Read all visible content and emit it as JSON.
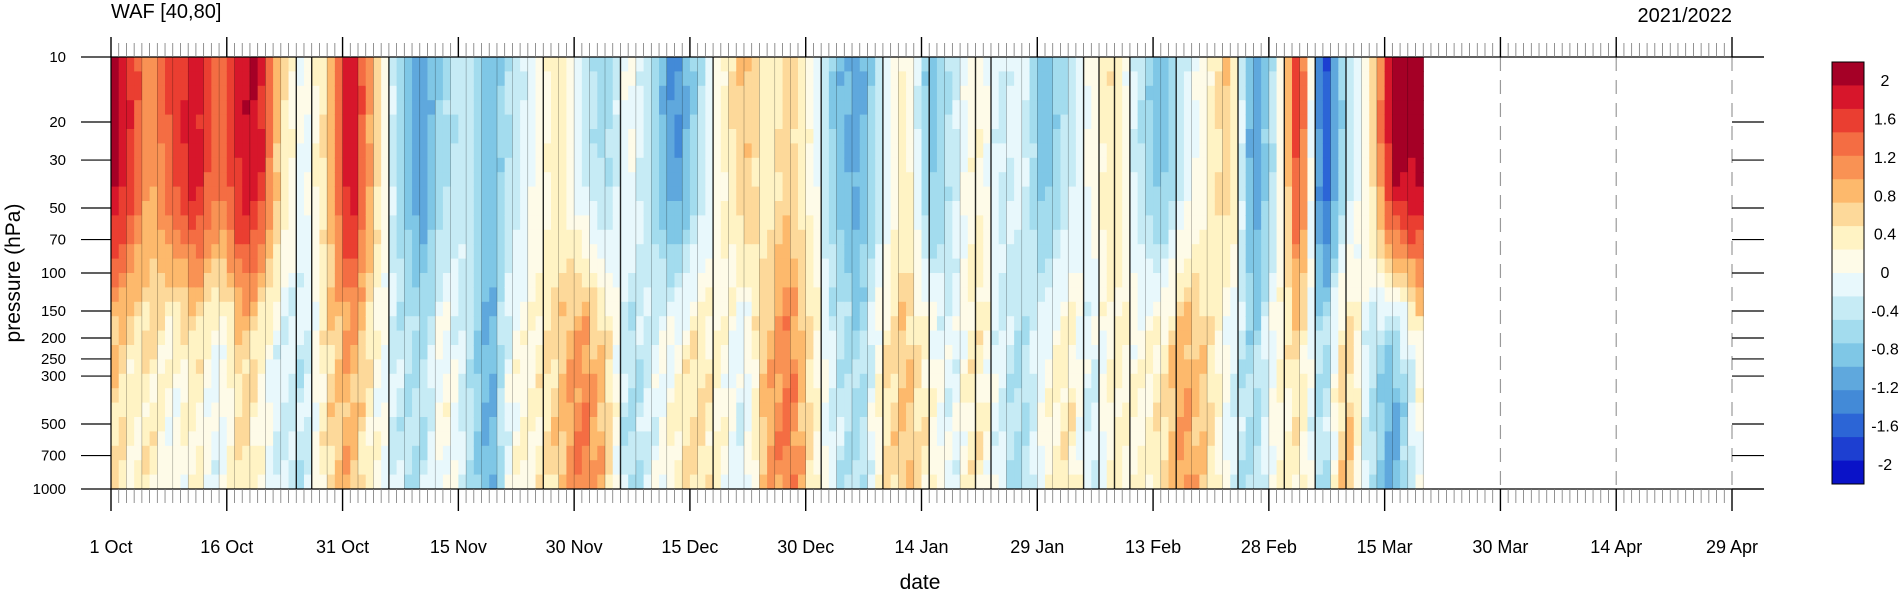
{
  "chart_data": {
    "type": "heatmap",
    "title_left": "WAF [40,80]",
    "title_right": "2021/2022",
    "xlabel": "date",
    "ylabel": "pressure (hPa)",
    "x_tick_labels": [
      "1 Oct",
      "16 Oct",
      "31 Oct",
      "15 Nov",
      "30 Nov",
      "15 Dec",
      "30 Dec",
      "14 Jan",
      "29 Jan",
      "13 Feb",
      "28 Feb",
      "15 Mar",
      "30 Mar",
      "14 Apr",
      "29 Apr"
    ],
    "x_tick_days": [
      0,
      15,
      30,
      45,
      60,
      75,
      90,
      105,
      120,
      135,
      150,
      165,
      180,
      195,
      210
    ],
    "x_range_days": [
      0,
      210
    ],
    "data_end_day": 170,
    "forecast_dividers_day": [
      180,
      195,
      210
    ],
    "y_scale": "log",
    "y_range": [
      1000,
      10
    ],
    "y_ticks": [
      10,
      20,
      30,
      50,
      70,
      100,
      150,
      200,
      250,
      300,
      500,
      700,
      1000
    ],
    "colorbar_labels": [
      "2",
      "1.6",
      "1.2",
      "0.8",
      "0.4",
      "0",
      "-0.4",
      "-0.8",
      "-1.2",
      "-1.6",
      "-2"
    ],
    "colorbar_range": [
      -2.2,
      2.2
    ],
    "colorbar_colors": [
      "#a50026",
      "#d7162b",
      "#ea3e31",
      "#f46d43",
      "#f99254",
      "#fdb96c",
      "#fdd99a",
      "#fff3c4",
      "#fefbe8",
      "#e8f8fc",
      "#c6ebf5",
      "#a3dcee",
      "#7fc7e6",
      "#5fa8dd",
      "#438ad7",
      "#2c65d6",
      "#1d3fd1",
      "#0a12c8"
    ],
    "value_profile": [
      {
        "day": 0,
        "strat": 2.2,
        "tropo": 0.6
      },
      {
        "day": 3,
        "strat": 1.6,
        "tropo": 0.2
      },
      {
        "day": 5,
        "strat": 1.0,
        "tropo": 0.4
      },
      {
        "day": 8,
        "strat": 1.6,
        "tropo": 0.0
      },
      {
        "day": 11,
        "strat": 1.9,
        "tropo": 0.3
      },
      {
        "day": 14,
        "strat": 1.3,
        "tropo": -0.2
      },
      {
        "day": 17,
        "strat": 1.9,
        "tropo": 0.6
      },
      {
        "day": 19,
        "strat": 2.0,
        "tropo": 0.2
      },
      {
        "day": 22,
        "strat": 0.6,
        "tropo": -0.3
      },
      {
        "day": 25,
        "strat": -0.1,
        "tropo": -0.4
      },
      {
        "day": 28,
        "strat": 0.6,
        "tropo": 0.5
      },
      {
        "day": 31,
        "strat": 2.1,
        "tropo": 0.9
      },
      {
        "day": 34,
        "strat": 0.8,
        "tropo": 0.2
      },
      {
        "day": 37,
        "strat": -0.5,
        "tropo": -0.3
      },
      {
        "day": 40,
        "strat": -1.3,
        "tropo": -0.5
      },
      {
        "day": 43,
        "strat": -0.6,
        "tropo": 0.2
      },
      {
        "day": 46,
        "strat": -0.3,
        "tropo": -0.3
      },
      {
        "day": 49,
        "strat": -1.0,
        "tropo": -1.1
      },
      {
        "day": 52,
        "strat": -0.4,
        "tropo": 0.1
      },
      {
        "day": 55,
        "strat": 0.0,
        "tropo": 0.3
      },
      {
        "day": 58,
        "strat": 0.4,
        "tropo": 0.7
      },
      {
        "day": 61,
        "strat": -0.3,
        "tropo": 1.3
      },
      {
        "day": 64,
        "strat": -0.7,
        "tropo": 0.8
      },
      {
        "day": 67,
        "strat": 0.1,
        "tropo": -0.6
      },
      {
        "day": 70,
        "strat": -0.5,
        "tropo": -0.2
      },
      {
        "day": 73,
        "strat": -1.4,
        "tropo": 0.3
      },
      {
        "day": 76,
        "strat": -0.6,
        "tropo": 0.6
      },
      {
        "day": 79,
        "strat": 0.2,
        "tropo": 0.2
      },
      {
        "day": 82,
        "strat": 0.8,
        "tropo": -0.3
      },
      {
        "day": 85,
        "strat": 0.3,
        "tropo": 0.9
      },
      {
        "day": 88,
        "strat": 0.6,
        "tropo": 1.3
      },
      {
        "day": 91,
        "strat": 0.1,
        "tropo": 0.4
      },
      {
        "day": 94,
        "strat": -0.9,
        "tropo": -0.3
      },
      {
        "day": 97,
        "strat": -1.1,
        "tropo": -0.6
      },
      {
        "day": 100,
        "strat": -0.3,
        "tropo": 0.4
      },
      {
        "day": 103,
        "strat": 0.4,
        "tropo": 0.8
      },
      {
        "day": 106,
        "strat": -0.9,
        "tropo": 0.3
      },
      {
        "day": 109,
        "strat": -0.4,
        "tropo": -0.2
      },
      {
        "day": 112,
        "strat": 0.3,
        "tropo": 0.5
      },
      {
        "day": 115,
        "strat": -0.3,
        "tropo": -0.2
      },
      {
        "day": 118,
        "strat": -0.1,
        "tropo": -0.6
      },
      {
        "day": 121,
        "strat": -1.0,
        "tropo": 0.1
      },
      {
        "day": 124,
        "strat": -0.4,
        "tropo": 0.5
      },
      {
        "day": 127,
        "strat": 0.1,
        "tropo": -0.3
      },
      {
        "day": 130,
        "strat": 0.5,
        "tropo": 0.3
      },
      {
        "day": 133,
        "strat": -0.4,
        "tropo": 0.2
      },
      {
        "day": 136,
        "strat": -1.0,
        "tropo": 0.5
      },
      {
        "day": 139,
        "strat": -0.3,
        "tropo": 1.1
      },
      {
        "day": 142,
        "strat": 0.2,
        "tropo": 0.6
      },
      {
        "day": 145,
        "strat": 0.8,
        "tropo": -0.2
      },
      {
        "day": 148,
        "strat": -1.3,
        "tropo": -0.6
      },
      {
        "day": 151,
        "strat": -0.3,
        "tropo": 0.2
      },
      {
        "day": 154,
        "strat": 1.9,
        "tropo": 0.4
      },
      {
        "day": 157,
        "strat": -1.9,
        "tropo": -0.6
      },
      {
        "day": 160,
        "strat": -0.5,
        "tropo": 0.9
      },
      {
        "day": 163,
        "strat": 0.3,
        "tropo": -0.4
      },
      {
        "day": 166,
        "strat": 2.2,
        "tropo": -1.2
      },
      {
        "day": 170,
        "strat": 2.1,
        "tropo": 0.2
      }
    ]
  }
}
